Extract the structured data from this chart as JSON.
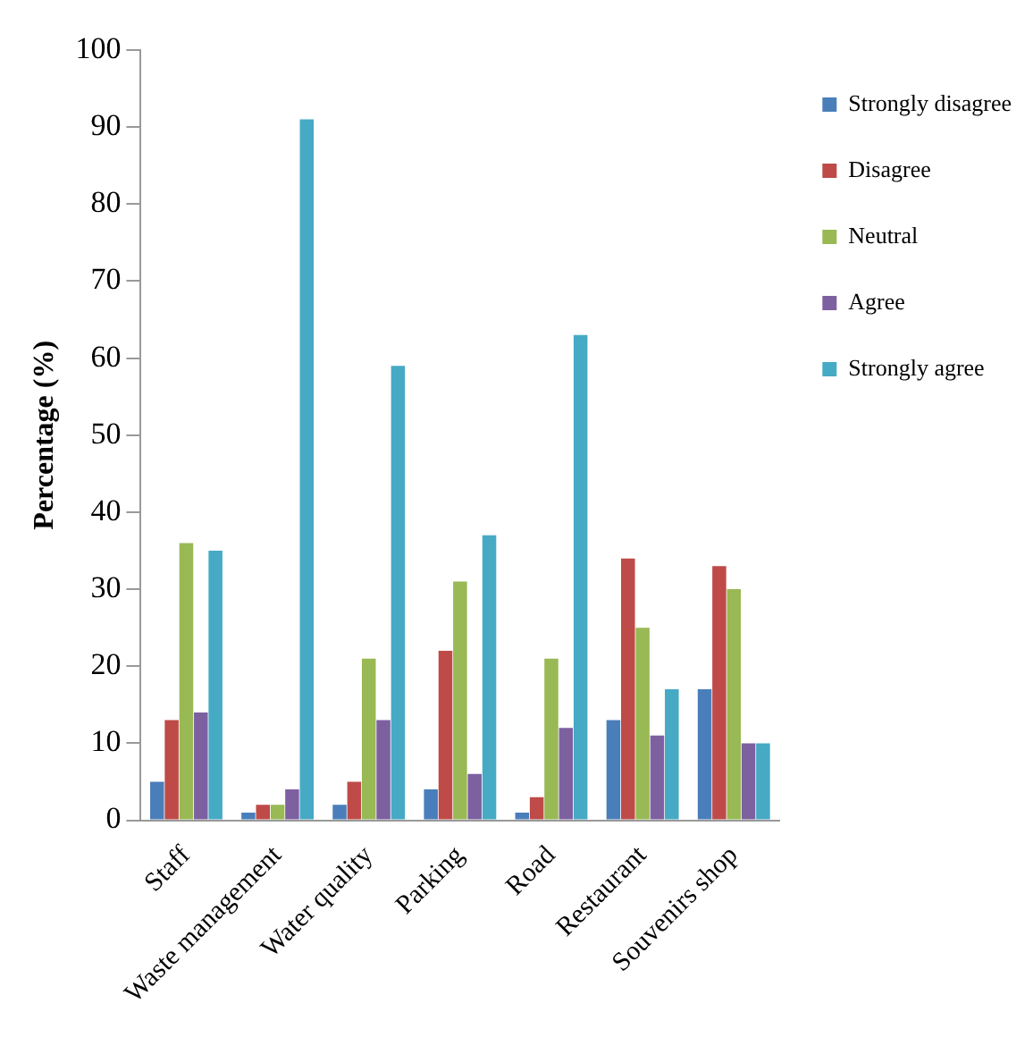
{
  "chart_data": {
    "type": "bar",
    "ylabel": "Percentage (%)",
    "categories": [
      "Staff",
      "Waste management",
      "Water quality",
      "Parking",
      "Road",
      "Restaurant",
      "Souvenirs shop"
    ],
    "series": [
      {
        "name": "Strongly disagree",
        "color": "#4a7ebb",
        "values": [
          5,
          1,
          2,
          4,
          1,
          13,
          17
        ]
      },
      {
        "name": "Disagree",
        "color": "#be4b48",
        "values": [
          13,
          2,
          5,
          22,
          3,
          34,
          33
        ]
      },
      {
        "name": "Neutral",
        "color": "#98b954",
        "values": [
          36,
          2,
          21,
          31,
          21,
          25,
          30
        ]
      },
      {
        "name": "Agree",
        "color": "#7d60a0",
        "values": [
          14,
          4,
          13,
          6,
          12,
          11,
          10
        ]
      },
      {
        "name": "Strongly agree",
        "color": "#46aac5",
        "values": [
          35,
          91,
          59,
          37,
          63,
          17,
          10
        ]
      }
    ],
    "ylim": [
      0,
      100
    ],
    "yticks": [
      0,
      10,
      20,
      30,
      40,
      50,
      60,
      70,
      80,
      90,
      100
    ],
    "grid": false,
    "legend": "right"
  }
}
